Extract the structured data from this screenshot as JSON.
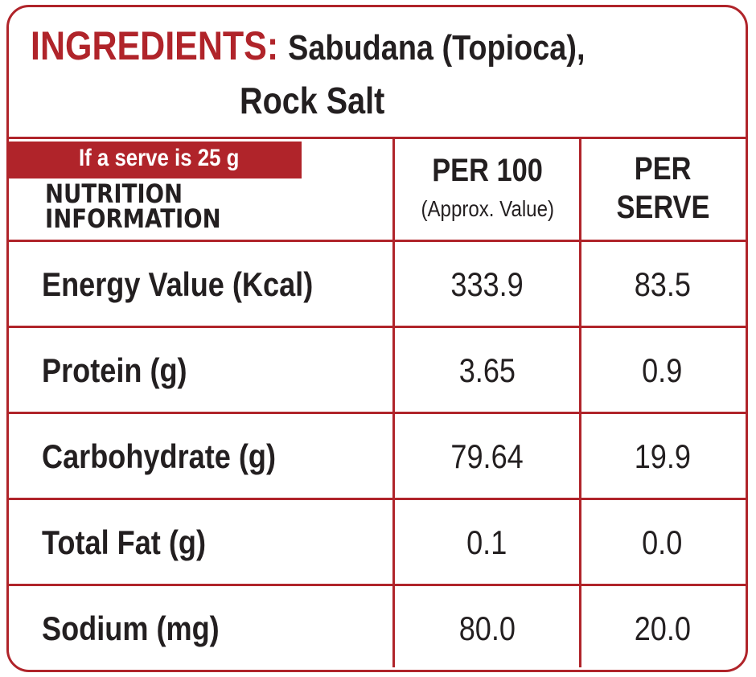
{
  "ingredients": {
    "label": "INGREDIENTS:",
    "line1": "Sabudana (Topioca),",
    "line2": "Rock Salt"
  },
  "table": {
    "serve_note": "If a serve is 25 g",
    "header": {
      "title_line1": "NUTRITION",
      "title_line2": "INFORMATION",
      "per100": "PER 100",
      "per100_note": "(Approx. Value)",
      "per_serve_line1": "PER",
      "per_serve_line2": "SERVE"
    },
    "rows": [
      [
        "Energy Value (Kcal)",
        "333.9",
        "83.5"
      ],
      [
        "Protein (g)",
        "3.65",
        "0.9"
      ],
      [
        "Carbohydrate (g)",
        "79.64",
        "19.9"
      ],
      [
        "Total Fat (g)",
        "0.1",
        "0.0"
      ],
      [
        "Sodium (mg)",
        "80.0",
        "20.0"
      ]
    ]
  }
}
